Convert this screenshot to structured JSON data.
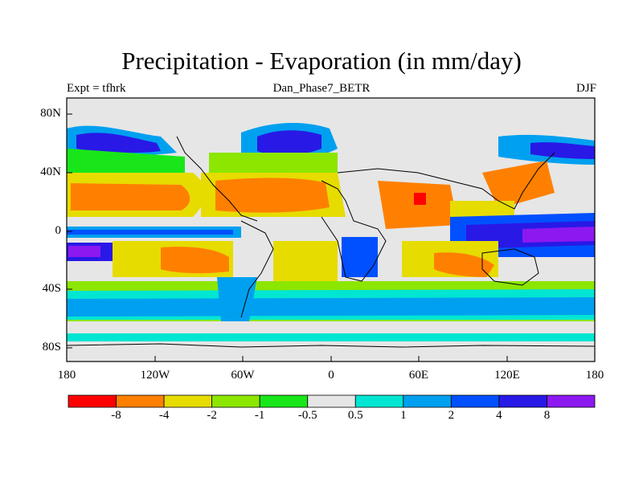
{
  "title": "Precipitation - Evaporation (in mm/day)",
  "subtitle": "Dan_Phase7_BETR",
  "left_label": "Expt = tfhrk",
  "right_label": "DJF",
  "axes": {
    "y_ticks": [
      "80N",
      "40N",
      "0",
      "40S",
      "80S"
    ],
    "x_ticks": [
      "180",
      "120W",
      "60W",
      "0",
      "60E",
      "120E",
      "180"
    ]
  },
  "colorbar": {
    "labels": [
      "-8",
      "-4",
      "-2",
      "-1",
      "-0.5",
      "0.5",
      "1",
      "2",
      "4",
      "8"
    ],
    "colors": [
      "#ff0000",
      "#ff8000",
      "#e6dc00",
      "#8ce600",
      "#19e619",
      "#e6e6e6",
      "#00e6d2",
      "#00a0f0",
      "#0050ff",
      "#2819e6",
      "#8c19f0"
    ]
  },
  "palette": {
    "land": "#e3e3e3",
    "coast": "#000000"
  }
}
